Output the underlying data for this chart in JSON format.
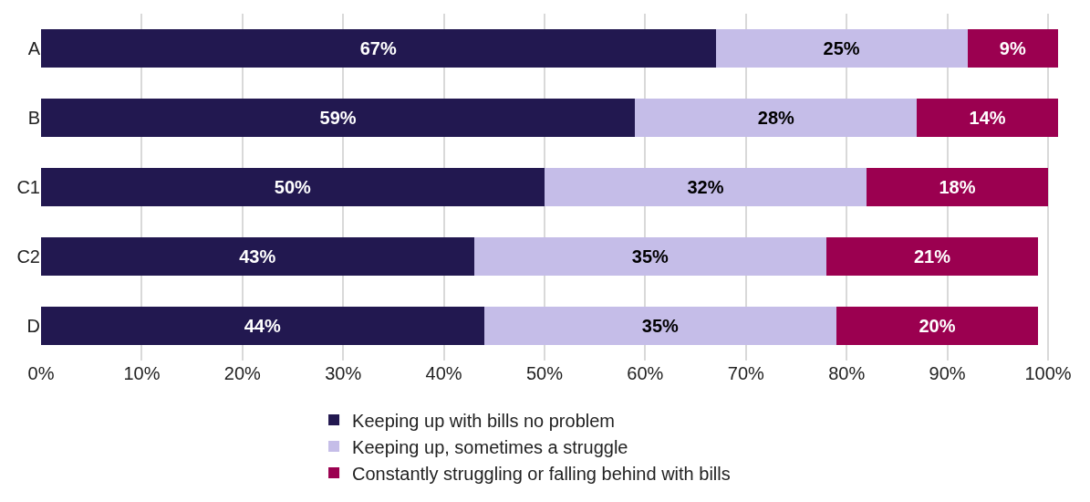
{
  "chart_data": {
    "type": "bar",
    "orientation": "horizontal",
    "stacked": true,
    "categories": [
      "A",
      "B",
      "C1",
      "C2",
      "D"
    ],
    "series": [
      {
        "name": "Keeping up with bills no problem",
        "color": "#221850",
        "values": [
          67,
          59,
          50,
          43,
          44
        ],
        "value_labels": [
          "67%",
          "59%",
          "50%",
          "43%",
          "44%"
        ]
      },
      {
        "name": "Keeping up, sometimes a struggle",
        "color": "#c5bde8",
        "values": [
          25,
          28,
          32,
          35,
          35
        ],
        "value_labels": [
          "25%",
          "28%",
          "32%",
          "35%",
          "35%"
        ]
      },
      {
        "name": "Constantly struggling or falling behind with bills",
        "color": "#9b0050",
        "values": [
          9,
          14,
          18,
          21,
          20
        ],
        "value_labels": [
          "9%",
          "14%",
          "18%",
          "21%",
          "20%"
        ]
      }
    ],
    "xlim": [
      0,
      101
    ],
    "xticks": [
      {
        "value": 0,
        "label": "0%"
      },
      {
        "value": 10,
        "label": "10%"
      },
      {
        "value": 20,
        "label": "20%"
      },
      {
        "value": 30,
        "label": "30%"
      },
      {
        "value": 40,
        "label": "40%"
      },
      {
        "value": 50,
        "label": "50%"
      },
      {
        "value": 60,
        "label": "60%"
      },
      {
        "value": 70,
        "label": "70%"
      },
      {
        "value": 80,
        "label": "80%"
      },
      {
        "value": 90,
        "label": "90%"
      },
      {
        "value": 100,
        "label": "100%"
      }
    ],
    "grid": "x",
    "legend": "bottom"
  }
}
